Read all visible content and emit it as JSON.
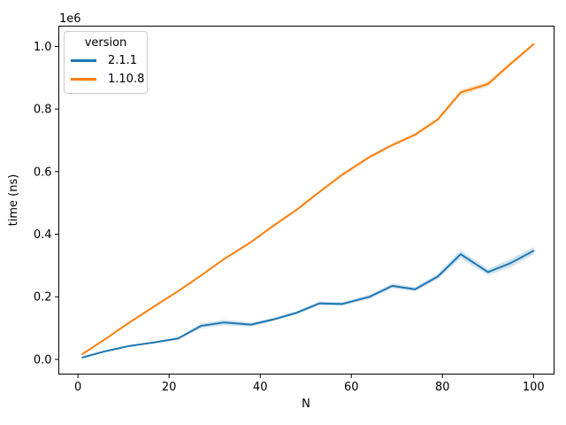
{
  "chart_data": {
    "type": "line",
    "title": "",
    "xlabel": "N",
    "ylabel": "time (ns)",
    "y_scale_offset": "1e6",
    "grid": false,
    "background": "#ffffff",
    "legend_title": "version",
    "legend_position": "upper left",
    "xlim": [
      -4.2,
      104.5
    ],
    "ylim": [
      -47000,
      1065000
    ],
    "x_tick_values": [
      0,
      20,
      40,
      60,
      80,
      100
    ],
    "x_tick_labels": [
      "0",
      "20",
      "40",
      "60",
      "80",
      "100"
    ],
    "y_tick_values": [
      0,
      200000,
      400000,
      600000,
      800000,
      1000000
    ],
    "y_tick_labels": [
      "0.0",
      "0.2",
      "0.4",
      "0.6",
      "0.8",
      "1.0"
    ],
    "x": [
      1,
      6,
      11,
      17,
      22,
      27,
      32,
      38,
      43,
      48,
      53,
      58,
      64,
      69,
      74,
      79,
      84,
      90,
      95,
      100
    ],
    "series": [
      {
        "name": "2.1.1",
        "color": "#1f77b4",
        "values": [
          6000,
          26000,
          42000,
          55000,
          67000,
          107000,
          118000,
          111000,
          128000,
          149000,
          179000,
          177000,
          200000,
          235000,
          224000,
          265000,
          336000,
          279000,
          308000,
          347000
        ],
        "ci_delta": [
          2000,
          3000,
          3000,
          3000,
          4000,
          8000,
          9000,
          7000,
          5000,
          5000,
          6000,
          6000,
          7000,
          8000,
          7000,
          9000,
          13000,
          10000,
          14000,
          12000
        ]
      },
      {
        "name": "1.10.8",
        "color": "#ff7f0e",
        "values": [
          17000,
          65000,
          115000,
          172000,
          218000,
          268000,
          320000,
          375000,
          428000,
          478000,
          535000,
          590000,
          647000,
          685000,
          718000,
          767000,
          853000,
          880000,
          945000,
          1007000
        ],
        "ci_delta": [
          2000,
          2000,
          2000,
          3000,
          3000,
          3000,
          3000,
          3000,
          4000,
          4000,
          4000,
          5000,
          5000,
          5000,
          5000,
          6000,
          9000,
          8000,
          7000,
          5000
        ]
      }
    ]
  }
}
